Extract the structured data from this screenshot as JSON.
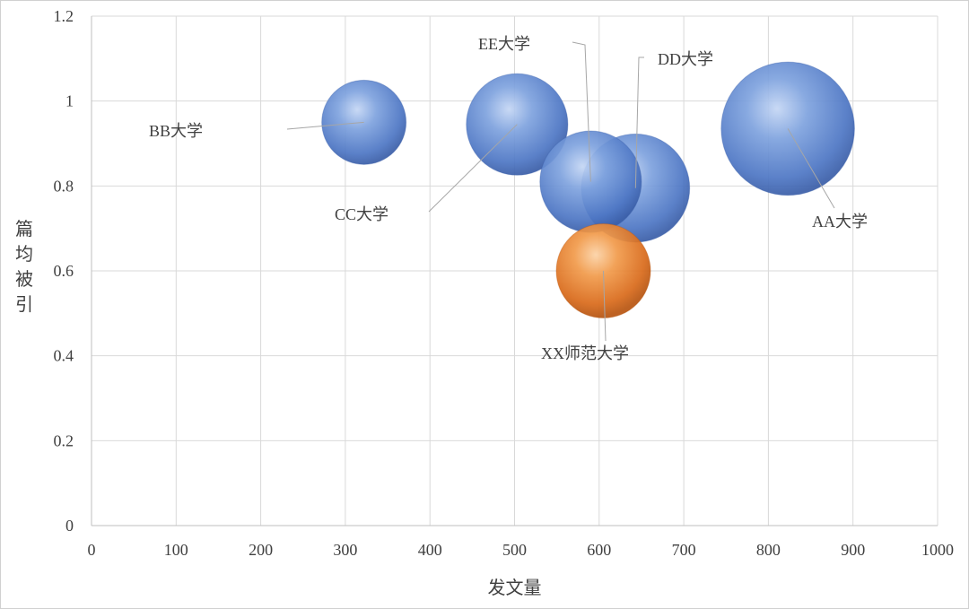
{
  "chart_data": {
    "type": "bubble",
    "xlabel": "发文量",
    "ylabel": "篇均被引",
    "xlim": [
      0,
      1000
    ],
    "ylim": [
      0,
      1.2
    ],
    "xticks": [
      0,
      100,
      200,
      300,
      400,
      500,
      600,
      700,
      800,
      900,
      1000
    ],
    "yticks": [
      0,
      0.2,
      0.4,
      0.6,
      0.8,
      1,
      1.2
    ],
    "grid": true,
    "colors": {
      "default": "#4f7fcf",
      "highlight": "#e07020"
    },
    "points": [
      {
        "label": "BB大学",
        "x": 322,
        "y": 0.95,
        "size": 1.0,
        "highlight": false
      },
      {
        "label": "CC大学",
        "x": 503,
        "y": 0.945,
        "size": 1.45,
        "highlight": false
      },
      {
        "label": "XX师范大学",
        "x": 605,
        "y": 0.6,
        "size": 1.25,
        "highlight": true
      },
      {
        "label": "EE大学",
        "x": 590,
        "y": 0.81,
        "size": 1.45,
        "highlight": false
      },
      {
        "label": "DD大学",
        "x": 643,
        "y": 0.795,
        "size": 1.65,
        "highlight": false
      },
      {
        "label": "AA大学",
        "x": 823,
        "y": 0.935,
        "size": 2.5,
        "highlight": false
      }
    ]
  }
}
